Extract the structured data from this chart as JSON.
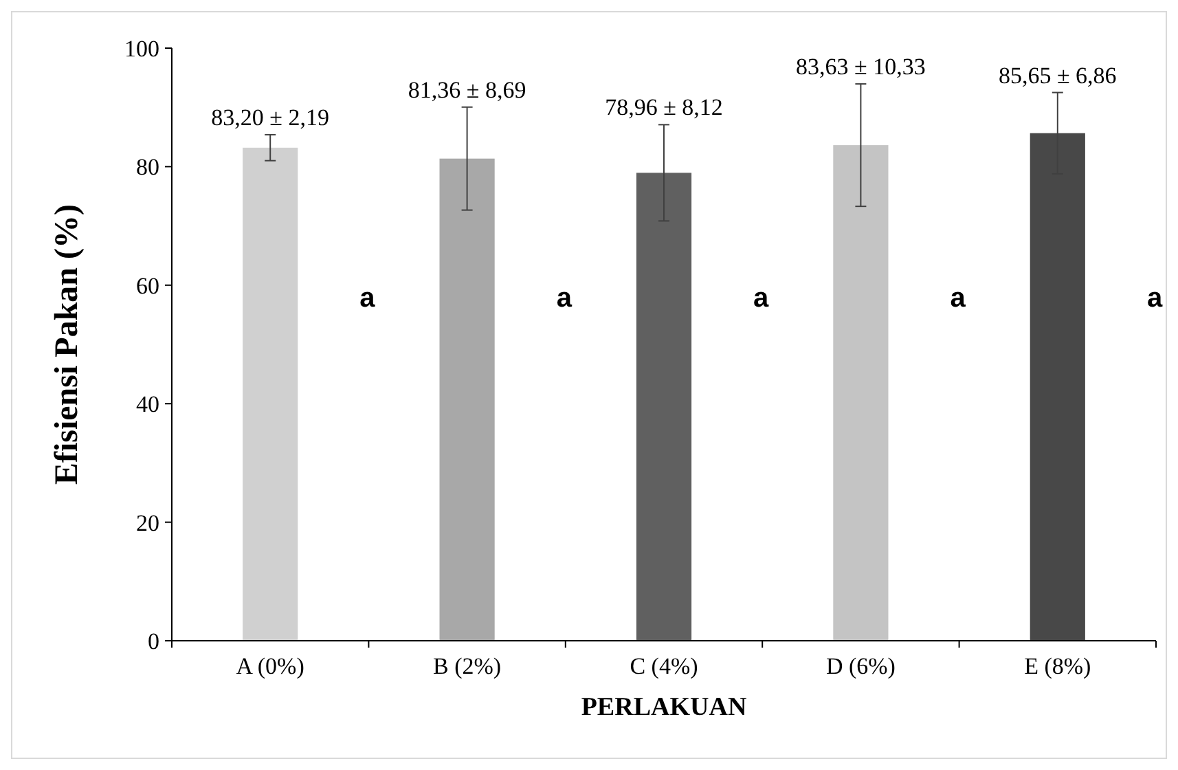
{
  "chart_data": {
    "type": "bar",
    "xlabel": "PERLAKUAN",
    "ylabel": "Efisiensi Pakan (%)",
    "categories": [
      "A (0%)",
      "B (2%)",
      "C (4%)",
      "D (6%)",
      "E (8%)"
    ],
    "values": [
      83.2,
      81.36,
      78.96,
      83.63,
      85.65
    ],
    "errors": [
      2.19,
      8.69,
      8.12,
      10.33,
      6.86
    ],
    "value_labels": [
      "83,20 ± 2,19",
      "81,36 ± 8,69",
      "78,96 ± 8,12",
      "83,63 ± 10,33",
      "85,65 ± 6,86"
    ],
    "colors": [
      "#d0d0d0",
      "#a8a8a8",
      "#606060",
      "#c4c4c4",
      "#484848"
    ],
    "ylim": [
      0,
      100
    ],
    "yticks": [
      0,
      20,
      40,
      60,
      80,
      100
    ],
    "grid": false,
    "annotations": [
      "a",
      "a",
      "a",
      "a",
      "a"
    ]
  }
}
